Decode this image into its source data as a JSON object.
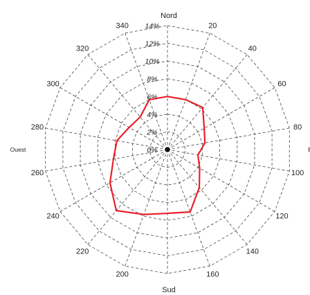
{
  "chart_data": {
    "type": "line",
    "subtype": "polar",
    "angle_unit": "degrees",
    "zero_direction": "north",
    "rotation": "clockwise",
    "radial_labels": [
      "0%",
      "2%",
      "4%",
      "6%",
      "8%",
      "10%",
      "12%",
      "14%"
    ],
    "radial_ticks": [
      0,
      2,
      4,
      6,
      8,
      10,
      12,
      14
    ],
    "rmax": 14,
    "angle_labels": [
      {
        "angle": 20,
        "label": "20"
      },
      {
        "angle": 40,
        "label": "40"
      },
      {
        "angle": 60,
        "label": "60"
      },
      {
        "angle": 80,
        "label": "80"
      },
      {
        "angle": 100,
        "label": "100"
      },
      {
        "angle": 120,
        "label": "120"
      },
      {
        "angle": 140,
        "label": "140"
      },
      {
        "angle": 160,
        "label": "160"
      },
      {
        "angle": 200,
        "label": "200"
      },
      {
        "angle": 220,
        "label": "220"
      },
      {
        "angle": 240,
        "label": "240"
      },
      {
        "angle": 260,
        "label": "260"
      },
      {
        "angle": 280,
        "label": "280"
      },
      {
        "angle": 300,
        "label": "300"
      },
      {
        "angle": 320,
        "label": "320"
      },
      {
        "angle": 340,
        "label": "340"
      }
    ],
    "direction_labels": [
      {
        "angle": 0,
        "label": "Nord"
      },
      {
        "angle": 90,
        "label": "E"
      },
      {
        "angle": 180,
        "label": "Sud"
      },
      {
        "angle": 270,
        "label": "Ouest"
      }
    ],
    "series": [
      {
        "color": "#e8202a",
        "angles": [
          0,
          20,
          40,
          60,
          80,
          100,
          120,
          140,
          160,
          180,
          200,
          220,
          240,
          260,
          280,
          300,
          320,
          340
        ],
        "values": [
          6.0,
          6.0,
          6.2,
          4.8,
          4.3,
          3.5,
          4.2,
          5.6,
          7.5,
          7.2,
          7.8,
          9.0,
          7.5,
          6.2,
          5.8,
          5.0,
          4.8,
          6.0
        ]
      }
    ],
    "grid": true
  }
}
